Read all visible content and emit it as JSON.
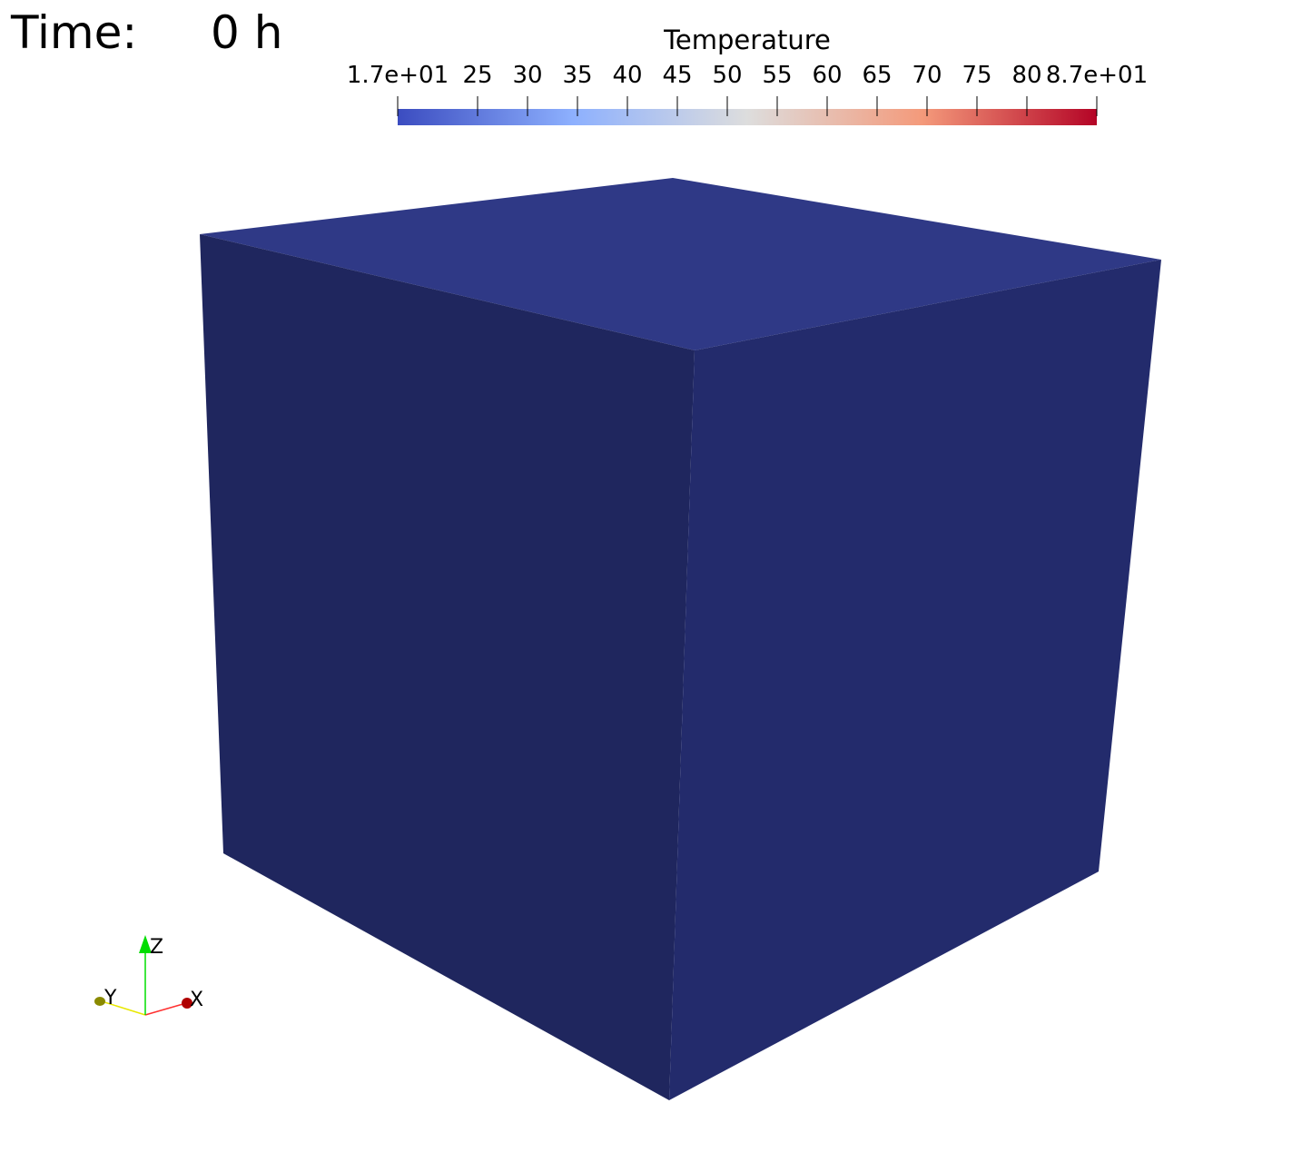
{
  "time_annotation": {
    "label": "Time:",
    "value": "0 h"
  },
  "colorbar": {
    "title": "Temperature",
    "range": [
      17,
      87
    ],
    "ticks": [
      {
        "value": 17,
        "label": "1.7e+01"
      },
      {
        "value": 25,
        "label": "25"
      },
      {
        "value": 30,
        "label": "30"
      },
      {
        "value": 35,
        "label": "35"
      },
      {
        "value": 40,
        "label": "40"
      },
      {
        "value": 45,
        "label": "45"
      },
      {
        "value": 50,
        "label": "50"
      },
      {
        "value": 55,
        "label": "55"
      },
      {
        "value": 60,
        "label": "60"
      },
      {
        "value": 65,
        "label": "65"
      },
      {
        "value": 70,
        "label": "70"
      },
      {
        "value": 75,
        "label": "75"
      },
      {
        "value": 80,
        "label": "80"
      },
      {
        "value": 87,
        "label": "8.7e+01"
      }
    ],
    "colormap": [
      "#3b4cc0",
      "#8db0fe",
      "#dddddd",
      "#f49a7b",
      "#b40426"
    ]
  },
  "cube": {
    "top_face_color": "#2f3986",
    "left_face_color": "#1f265e",
    "right_face_color": "#232b6c"
  },
  "orientation_axes": {
    "x_label": "X",
    "y_label": "Y",
    "z_label": "Z",
    "x_color": "#ff3030",
    "y_color": "#e8e800",
    "z_color": "#00dd00"
  }
}
